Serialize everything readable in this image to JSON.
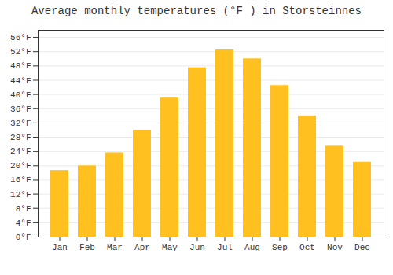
{
  "chart_data": {
    "type": "bar",
    "title": "Average monthly temperatures (°F ) in Storsteinnes",
    "categories": [
      "Jan",
      "Feb",
      "Mar",
      "Apr",
      "May",
      "Jun",
      "Jul",
      "Aug",
      "Sep",
      "Oct",
      "Nov",
      "Dec"
    ],
    "values": [
      18.5,
      20.0,
      23.5,
      30.0,
      39.0,
      47.5,
      52.5,
      50.0,
      42.5,
      34.0,
      25.5,
      21.0
    ],
    "color": "#FFC020",
    "ylim": [
      0,
      58
    ],
    "yticks": [
      {
        "value": 0,
        "label": "0°F"
      },
      {
        "value": 4,
        "label": "4°F"
      },
      {
        "value": 8,
        "label": "8°F"
      },
      {
        "value": 12,
        "label": "12°F"
      },
      {
        "value": 16,
        "label": "16°F"
      },
      {
        "value": 20,
        "label": "20°F"
      },
      {
        "value": 24,
        "label": "24°F"
      },
      {
        "value": 28,
        "label": "28°F"
      },
      {
        "value": 32,
        "label": "32°F"
      },
      {
        "value": 36,
        "label": "36°F"
      },
      {
        "value": 40,
        "label": "40°F"
      },
      {
        "value": 44,
        "label": "44°F"
      },
      {
        "value": 48,
        "label": "48°F"
      },
      {
        "value": 52,
        "label": "52°F"
      },
      {
        "value": 56,
        "label": "56°F"
      }
    ],
    "grid": true
  }
}
